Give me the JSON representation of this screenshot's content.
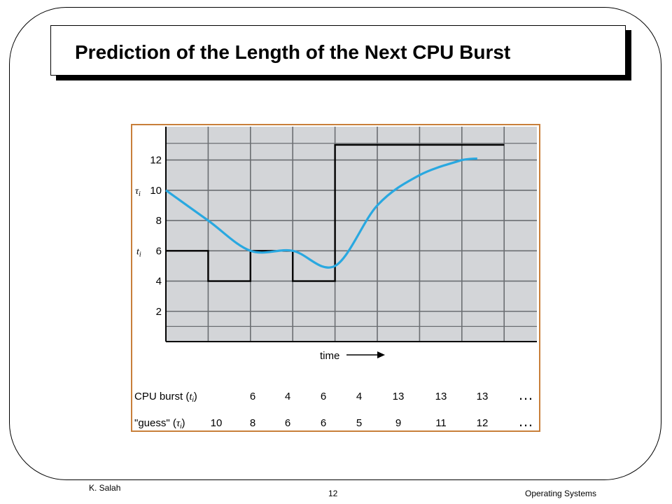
{
  "slide": {
    "title": "Prediction of the Length of the Next CPU Burst",
    "footer_left": "K. Salah",
    "footer_center": "12",
    "footer_right": "Operating Systems"
  },
  "colors": {
    "guess_line": "#29a8e0",
    "burst_line": "#000000",
    "plot_bg": "#d3d5d8",
    "figure_border": "#c87f3a"
  },
  "chart_data": {
    "type": "line",
    "x": [
      0,
      1,
      2,
      3,
      4,
      5,
      6,
      7
    ],
    "ylim": [
      0,
      14
    ],
    "yticks": [
      2,
      4,
      6,
      8,
      10,
      12
    ],
    "xlabel": "time",
    "grid": true,
    "series": [
      {
        "name": "t",
        "subscript": "i",
        "values": [
          6,
          4,
          6,
          4,
          13,
          13,
          13,
          13
        ]
      },
      {
        "name": "τ",
        "subscript": "i",
        "values": [
          10,
          8,
          6,
          6,
          5,
          9,
          11,
          12
        ]
      }
    ],
    "table": {
      "rows": [
        {
          "label": "CPU burst (",
          "sym": "t",
          "sub": "i",
          "close": ")",
          "values": [
            "6",
            "4",
            "6",
            "4",
            "13",
            "13",
            "13"
          ],
          "ellipsis": "…"
        },
        {
          "label": "\"guess\" (",
          "sym": "τ",
          "sub": "i",
          "close": ")",
          "values": [
            "10",
            "8",
            "6",
            "6",
            "5",
            "9",
            "11",
            "12"
          ],
          "ellipsis": "…"
        }
      ]
    }
  }
}
